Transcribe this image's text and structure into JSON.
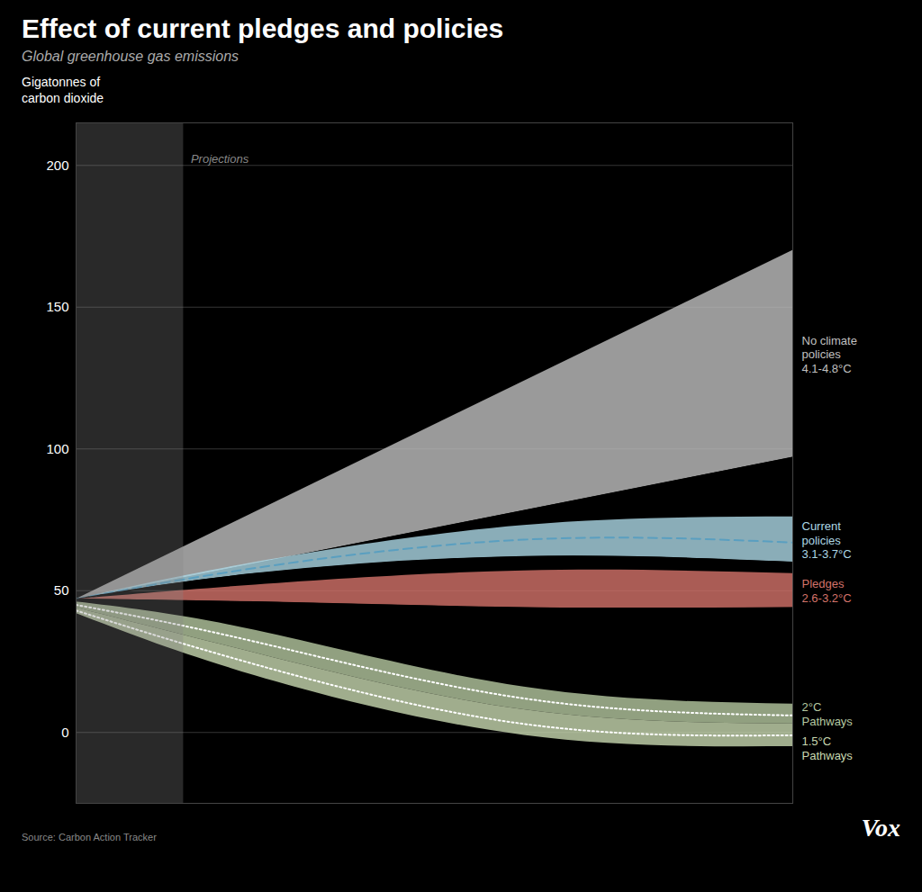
{
  "chart_data": {
    "type": "area",
    "title": "Effect of current pledges and policies",
    "subtitle": "Global greenhouse gas emissions",
    "subtitle_color": "#aaaaaa",
    "ylabel": "Gigatonnes of\ncarbon dioxide",
    "source": "Source: Carbon Action Tracker",
    "source_color": "#888888",
    "logo": "Vox",
    "background": "#000000",
    "text_color": "#ffffff",
    "grid_color": "#444444",
    "xlim": [
      2020,
      2100
    ],
    "ylim": [
      -25,
      215
    ],
    "yticks": [
      0,
      50,
      100,
      150,
      200
    ],
    "grid": true,
    "tick_labels": "y",
    "projection": {
      "x": [
        2020,
        2032
      ],
      "label": "Projections",
      "color": "#888888"
    },
    "series": [
      {
        "name": "No climate\npolicies\n4.1-4.8°C",
        "color": "#c0c0c0",
        "x": [
          2020,
          2100
        ],
        "upper": [
          47,
          170
        ],
        "lower": [
          47,
          97
        ],
        "boundary_color": "#000000"
      },
      {
        "name": "Current\npolicies\n3.1-3.7°C",
        "color": "#add8e6",
        "x": [
          2020,
          2040,
          2070,
          2100
        ],
        "upper": [
          47,
          60,
          73,
          76
        ],
        "lower": [
          47,
          56,
          62,
          60
        ],
        "mid": {
          "values": [
            47,
            58,
            68,
            67
          ],
          "color": "#5a9fc0",
          "line_style": "dashed"
        },
        "boundary_color": "#000000"
      },
      {
        "name": "Pledges\n2.6-3.2°C",
        "color": "#d4736a",
        "x": [
          2020,
          2040,
          2070,
          2100
        ],
        "upper": [
          47,
          52,
          57,
          56
        ],
        "lower": [
          47,
          46,
          44,
          44
        ],
        "boundary_color": "#000000"
      },
      {
        "name": "2°C\nPathways",
        "color": "#b5c8a0",
        "x": [
          2020,
          2040,
          2070,
          2100
        ],
        "upper": [
          46,
          36,
          16,
          10
        ],
        "lower": [
          44,
          28,
          8,
          3
        ],
        "mid": {
          "values": [
            45,
            32,
            12,
            6
          ],
          "color": "#ffffff",
          "line_style": "dotted"
        }
      },
      {
        "name": "1.5°C\nPathways",
        "color": "#c8d8b0",
        "x": [
          2020,
          2040,
          2070,
          2100
        ],
        "upper": [
          44,
          28,
          8,
          3
        ],
        "lower": [
          42,
          20,
          -1,
          -5
        ],
        "mid": {
          "values": [
            43,
            24,
            3,
            -1
          ],
          "color": "#ffffff",
          "line_style": "dotted"
        }
      }
    ]
  }
}
